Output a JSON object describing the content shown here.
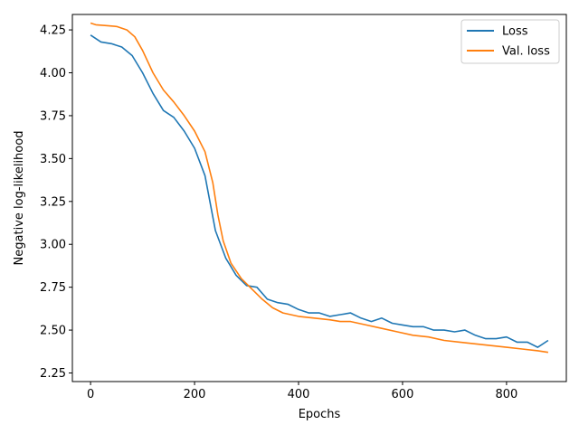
{
  "chart_data": {
    "type": "line",
    "title": "",
    "xlabel": "Epochs",
    "ylabel": "Negative log-likelihood",
    "xlim": [
      -35,
      915
    ],
    "ylim": [
      2.2,
      4.34
    ],
    "xticks": [
      0,
      200,
      400,
      600,
      800
    ],
    "xtick_labels": [
      "0",
      "200",
      "400",
      "600",
      "800"
    ],
    "yticks": [
      2.25,
      2.5,
      2.75,
      3.0,
      3.25,
      3.5,
      3.75,
      4.0,
      4.25
    ],
    "ytick_labels": [
      "2.25",
      "2.50",
      "2.75",
      "3.00",
      "3.25",
      "3.50",
      "3.75",
      "4.00",
      "4.25"
    ],
    "grid": false,
    "legend_position": "top-right",
    "series": [
      {
        "name": "Loss",
        "color": "#1f77b4",
        "x": [
          0,
          20,
          40,
          60,
          80,
          100,
          120,
          140,
          160,
          180,
          200,
          220,
          240,
          260,
          280,
          300,
          320,
          340,
          360,
          380,
          400,
          420,
          440,
          460,
          480,
          500,
          520,
          540,
          560,
          580,
          600,
          620,
          640,
          660,
          680,
          700,
          720,
          740,
          760,
          780,
          800,
          820,
          840,
          860,
          880
        ],
        "values": [
          4.22,
          4.18,
          4.17,
          4.15,
          4.1,
          4.0,
          3.88,
          3.78,
          3.74,
          3.66,
          3.56,
          3.4,
          3.08,
          2.92,
          2.82,
          2.76,
          2.75,
          2.68,
          2.66,
          2.65,
          2.62,
          2.6,
          2.6,
          2.58,
          2.59,
          2.6,
          2.57,
          2.55,
          2.57,
          2.54,
          2.53,
          2.52,
          2.52,
          2.5,
          2.5,
          2.49,
          2.5,
          2.47,
          2.45,
          2.45,
          2.46,
          2.43,
          2.43,
          2.4,
          2.44
        ]
      },
      {
        "name": "Val. loss",
        "color": "#ff7f0e",
        "x": [
          0,
          10,
          30,
          50,
          70,
          85,
          100,
          120,
          140,
          160,
          180,
          200,
          220,
          235,
          245,
          255,
          270,
          290,
          310,
          330,
          350,
          370,
          400,
          430,
          460,
          480,
          500,
          530,
          560,
          590,
          620,
          650,
          680,
          710,
          740,
          770,
          800,
          830,
          860,
          880
        ],
        "values": [
          4.29,
          4.28,
          4.275,
          4.27,
          4.25,
          4.21,
          4.13,
          4.0,
          3.9,
          3.83,
          3.75,
          3.66,
          3.54,
          3.36,
          3.17,
          3.02,
          2.89,
          2.8,
          2.74,
          2.68,
          2.63,
          2.6,
          2.58,
          2.57,
          2.56,
          2.55,
          2.55,
          2.53,
          2.51,
          2.49,
          2.47,
          2.46,
          2.44,
          2.43,
          2.42,
          2.41,
          2.4,
          2.39,
          2.38,
          2.37
        ]
      }
    ]
  }
}
